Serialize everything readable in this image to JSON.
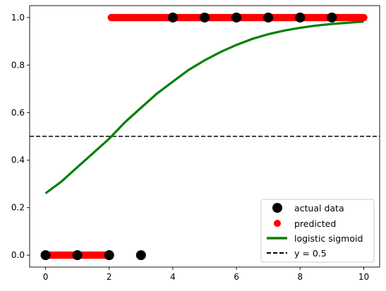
{
  "chart_data": {
    "type": "scatter",
    "xlim": [
      -0.5,
      10.5
    ],
    "ylim": [
      -0.05,
      1.05
    ],
    "x_ticks": [
      "0",
      "2",
      "4",
      "6",
      "8",
      "10"
    ],
    "y_ticks": [
      "0.0",
      "0.2",
      "0.4",
      "0.6",
      "0.8",
      "1.0"
    ],
    "grid": false,
    "legend_position": "lower-right",
    "series": [
      {
        "name": "actual data",
        "kind": "scatter",
        "color": "#000000",
        "x": [
          0,
          1,
          2,
          3,
          4,
          5,
          6,
          7,
          8,
          9
        ],
        "y": [
          0,
          0,
          0,
          0,
          1,
          1,
          1,
          1,
          1,
          1
        ]
      },
      {
        "name": "predicted",
        "kind": "scatter",
        "color": "#ff0000",
        "x_start": 0,
        "x_end": 10,
        "threshold_x": 2.05,
        "y_below": 0,
        "y_above": 1
      },
      {
        "name": "logistic sigmoid",
        "kind": "line",
        "color": "#008000",
        "x": [
          0,
          0.5,
          1,
          1.5,
          2,
          2.5,
          3,
          3.5,
          4,
          4.5,
          5,
          5.5,
          6,
          6.5,
          7,
          7.5,
          8,
          8.5,
          9,
          9.5,
          10
        ],
        "y": [
          0.26,
          0.31,
          0.37,
          0.43,
          0.49,
          0.56,
          0.62,
          0.68,
          0.73,
          0.78,
          0.82,
          0.855,
          0.885,
          0.91,
          0.93,
          0.945,
          0.957,
          0.966,
          0.973,
          0.978,
          0.983
        ]
      },
      {
        "name": "y = 0.5",
        "kind": "hline",
        "color": "#000000",
        "y": 0.5
      }
    ]
  }
}
